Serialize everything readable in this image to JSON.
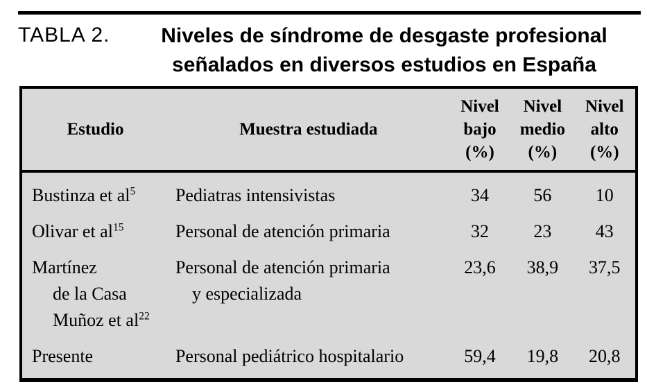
{
  "caption": {
    "label": "TABLA 2.",
    "title": "Niveles de síndrome de desgaste profesional\nseñalados en diversos estudios en España"
  },
  "table": {
    "columns": [
      {
        "label": "Estudio"
      },
      {
        "label": "Muestra estudiada"
      },
      {
        "label": "Nivel\nbajo\n(%)"
      },
      {
        "label": "Nivel\nmedio\n(%)"
      },
      {
        "label": "Nivel\nalto\n(%)"
      }
    ],
    "rows": [
      {
        "estudio": "Bustinza et al",
        "ref": "5",
        "muestra": "Pediatras intensivistas",
        "nivel_bajo": "34",
        "nivel_medio": "56",
        "nivel_alto": "10"
      },
      {
        "estudio": "Olivar et al",
        "ref": "15",
        "muestra": "Personal de atención primaria",
        "nivel_bajo": "32",
        "nivel_medio": "23",
        "nivel_alto": "43"
      },
      {
        "estudio": "Martínez\nde la Casa\nMuñoz et al",
        "ref": "22",
        "muestra": "Personal de atención primaria\ny especializada",
        "nivel_bajo": "23,6",
        "nivel_medio": "38,9",
        "nivel_alto": "37,5"
      },
      {
        "estudio": "Presente",
        "ref": "",
        "muestra": "Personal pediátrico hospitalario",
        "nivel_bajo": "59,4",
        "nivel_medio": "19,8",
        "nivel_alto": "20,8"
      }
    ]
  },
  "colors": {
    "table_background": "#d9d9d9",
    "rule": "#000000",
    "text": "#000000",
    "page_background": "#ffffff"
  }
}
